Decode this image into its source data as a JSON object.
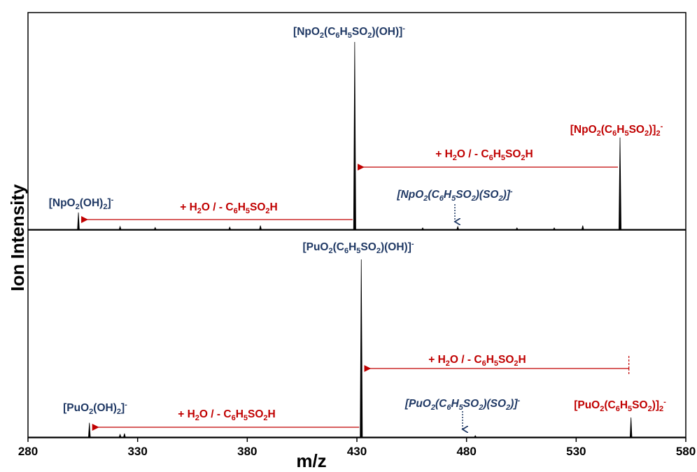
{
  "chart_data": {
    "type": "line",
    "xlabel": "m/z",
    "ylabel": "Ion Intensity",
    "xlim": [
      280,
      580
    ],
    "x_ticks": [
      280,
      330,
      380,
      430,
      480,
      530,
      580
    ],
    "grid": false,
    "colors": {
      "peaks": "#000000",
      "red": "#c00000",
      "blue": "#1f3864"
    },
    "panels": [
      {
        "name": "Np",
        "ylim": [
          0,
          1
        ],
        "peaks": [
          {
            "x": 303,
            "y": 0.09
          },
          {
            "x": 322,
            "y": 0.015
          },
          {
            "x": 338,
            "y": 0.01
          },
          {
            "x": 372,
            "y": 0.012
          },
          {
            "x": 386,
            "y": 0.02
          },
          {
            "x": 429,
            "y": 1.0
          },
          {
            "x": 460,
            "y": 0.008
          },
          {
            "x": 476,
            "y": 0.015
          },
          {
            "x": 503,
            "y": 0.008
          },
          {
            "x": 520,
            "y": 0.008
          },
          {
            "x": 533,
            "y": 0.02
          },
          {
            "x": 550,
            "y": 0.49
          }
        ],
        "annotations": [
          {
            "id": "np-monomer",
            "x": 429,
            "color": "blue",
            "italic": false,
            "parts": [
              [
                "[NpO"
              ],
              [
                "2",
                "sub"
              ],
              [
                "(C"
              ],
              [
                "6",
                "sub"
              ],
              [
                "H"
              ],
              [
                "5",
                "sub"
              ],
              [
                "SO"
              ],
              [
                "2",
                "sub"
              ],
              [
                ")(OH)]"
              ],
              [
                "-",
                "sup"
              ]
            ]
          },
          {
            "id": "np-dimer",
            "x": 550,
            "color": "red",
            "italic": false,
            "parts": [
              [
                "[NpO"
              ],
              [
                "2",
                "sub"
              ],
              [
                "(C"
              ],
              [
                "6",
                "sub"
              ],
              [
                "H"
              ],
              [
                "5",
                "sub"
              ],
              [
                "SO"
              ],
              [
                "2",
                "sub"
              ],
              [
                ")]"
              ],
              [
                "2",
                "sub"
              ],
              [
                "-",
                "sup"
              ]
            ]
          },
          {
            "id": "np-hydroxide",
            "x": 303,
            "color": "blue",
            "italic": false,
            "parts": [
              [
                "[NpO"
              ],
              [
                "2",
                "sub"
              ],
              [
                "(OH)"
              ],
              [
                "2",
                "sub"
              ],
              [
                "]"
              ],
              [
                "-",
                "sup"
              ]
            ]
          },
          {
            "id": "np-so2",
            "x": 476,
            "color": "blue",
            "italic": true,
            "parts": [
              [
                "[NpO"
              ],
              [
                "2",
                "sub"
              ],
              [
                "(C"
              ],
              [
                "6",
                "sub"
              ],
              [
                "H"
              ],
              [
                "5",
                "sub"
              ],
              [
                "SO"
              ],
              [
                "2",
                "sub"
              ],
              [
                ")(SO"
              ],
              [
                "2",
                "sub"
              ],
              [
                ")]"
              ],
              [
                "-",
                "sup"
              ]
            ]
          },
          {
            "id": "np-arrow-label-1",
            "color": "red",
            "italic": false,
            "parts": [
              [
                "+ H"
              ],
              [
                "2",
                "sub"
              ],
              [
                "O  /  - C"
              ],
              [
                "6",
                "sub"
              ],
              [
                "H"
              ],
              [
                "5",
                "sub"
              ],
              [
                "SO"
              ],
              [
                "2",
                "sub"
              ],
              [
                "H"
              ]
            ]
          },
          {
            "id": "np-arrow-label-2",
            "color": "red",
            "italic": false,
            "parts": [
              [
                "+ H"
              ],
              [
                "2",
                "sub"
              ],
              [
                "O  /  - C"
              ],
              [
                "6",
                "sub"
              ],
              [
                "H"
              ],
              [
                "5",
                "sub"
              ],
              [
                "SO"
              ],
              [
                "2",
                "sub"
              ],
              [
                "H"
              ]
            ]
          }
        ],
        "arrows": [
          {
            "from": 550,
            "to": 429
          },
          {
            "from": 429,
            "to": 303
          }
        ]
      },
      {
        "name": "Pu",
        "ylim": [
          0,
          1
        ],
        "peaks": [
          {
            "x": 308,
            "y": 0.08
          },
          {
            "x": 322,
            "y": 0.015
          },
          {
            "x": 324,
            "y": 0.02
          },
          {
            "x": 432,
            "y": 1.0
          },
          {
            "x": 484,
            "y": 0.008
          },
          {
            "x": 555,
            "y": 0.11
          }
        ],
        "annotations": [
          {
            "id": "pu-monomer",
            "x": 432,
            "color": "blue",
            "italic": false,
            "parts": [
              [
                "[PuO"
              ],
              [
                "2",
                "sub"
              ],
              [
                "(C"
              ],
              [
                "6",
                "sub"
              ],
              [
                "H"
              ],
              [
                "5",
                "sub"
              ],
              [
                "SO"
              ],
              [
                "2",
                "sub"
              ],
              [
                ")(OH)]"
              ],
              [
                "-",
                "sup"
              ]
            ]
          },
          {
            "id": "pu-dimer",
            "x": 555,
            "color": "red",
            "italic": false,
            "parts": [
              [
                "[PuO"
              ],
              [
                "2",
                "sub"
              ],
              [
                "(C"
              ],
              [
                "6",
                "sub"
              ],
              [
                "H"
              ],
              [
                "5",
                "sub"
              ],
              [
                "SO"
              ],
              [
                "2",
                "sub"
              ],
              [
                ")]"
              ],
              [
                "2",
                "sub"
              ],
              [
                "-",
                "sup"
              ]
            ]
          },
          {
            "id": "pu-hydroxide",
            "x": 308,
            "color": "blue",
            "italic": false,
            "parts": [
              [
                "[PuO"
              ],
              [
                "2",
                "sub"
              ],
              [
                "(OH)"
              ],
              [
                "2",
                "sub"
              ],
              [
                "]"
              ],
              [
                "-",
                "sup"
              ]
            ]
          },
          {
            "id": "pu-so2",
            "x": 479,
            "color": "blue",
            "italic": true,
            "parts": [
              [
                "[PuO"
              ],
              [
                "2",
                "sub"
              ],
              [
                "(C"
              ],
              [
                "6",
                "sub"
              ],
              [
                "H"
              ],
              [
                "5",
                "sub"
              ],
              [
                "SO"
              ],
              [
                "2",
                "sub"
              ],
              [
                ")(SO"
              ],
              [
                "2",
                "sub"
              ],
              [
                ")]"
              ],
              [
                "-",
                "sup"
              ]
            ]
          },
          {
            "id": "pu-arrow-label-1",
            "color": "red",
            "italic": false,
            "parts": [
              [
                "+ H"
              ],
              [
                "2",
                "sub"
              ],
              [
                "O  /  - C"
              ],
              [
                "6",
                "sub"
              ],
              [
                "H"
              ],
              [
                "5",
                "sub"
              ],
              [
                "SO"
              ],
              [
                "2",
                "sub"
              ],
              [
                "H"
              ]
            ]
          },
          {
            "id": "pu-arrow-label-2",
            "color": "red",
            "italic": false,
            "parts": [
              [
                "+ H"
              ],
              [
                "2",
                "sub"
              ],
              [
                "O  /  - C"
              ],
              [
                "6",
                "sub"
              ],
              [
                "H"
              ],
              [
                "5",
                "sub"
              ],
              [
                "SO"
              ],
              [
                "2",
                "sub"
              ],
              [
                "H"
              ]
            ]
          }
        ],
        "arrows": [
          {
            "from": 555,
            "to": 432
          },
          {
            "from": 432,
            "to": 308
          }
        ]
      }
    ]
  }
}
